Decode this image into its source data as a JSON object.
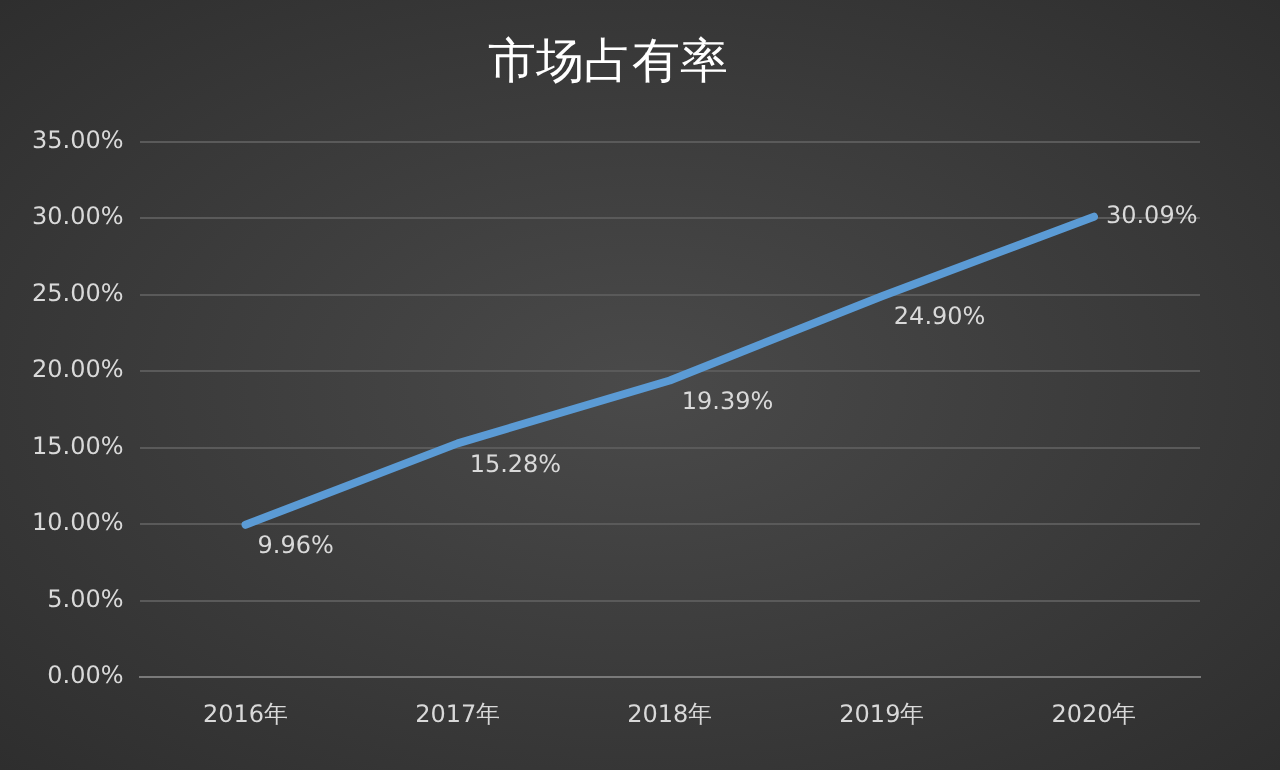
{
  "chart_data": {
    "type": "line",
    "title": "市场占有率",
    "categories": [
      "2016年",
      "2017年",
      "2018年",
      "2019年",
      "2020年"
    ],
    "series": [
      {
        "color": "#5b9bd5",
        "values": [
          9.96,
          15.28,
          19.39,
          24.9,
          30.09
        ],
        "value_labels": [
          "9.96%",
          "15.28%",
          "19.39%",
          "24.90%",
          "30.09%"
        ]
      }
    ],
    "ylim": [
      0,
      35
    ],
    "yticks": [
      {
        "value": 0,
        "label": "0.00%"
      },
      {
        "value": 5,
        "label": "5.00%"
      },
      {
        "value": 10,
        "label": "10.00%"
      },
      {
        "value": 15,
        "label": "15.00%"
      },
      {
        "value": 20,
        "label": "20.00%"
      },
      {
        "value": 25,
        "label": "25.00%"
      },
      {
        "value": 30,
        "label": "30.00%"
      },
      {
        "value": 35,
        "label": "35.00%"
      }
    ],
    "grid": "y",
    "legend": false,
    "marker": "none",
    "line_style": "solid"
  }
}
